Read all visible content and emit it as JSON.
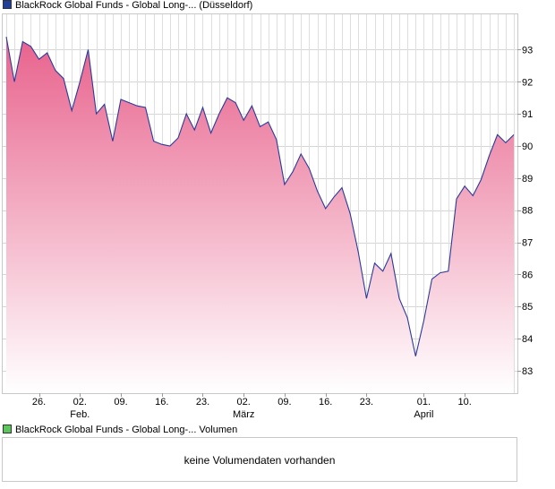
{
  "chart_data": [
    {
      "type": "area",
      "legend_label": "BlackRock Global Funds - Global Long-... (Düsseldorf)",
      "legend_color": "#1f3f9a",
      "fill_top_color": "#e8628c",
      "fill_bottom_color": "#ffffff",
      "line_color": "#2a3a9c",
      "ylim": [
        82.3,
        94.1
      ],
      "y_ticks": [
        83,
        84,
        85,
        86,
        87,
        88,
        89,
        90,
        91,
        92,
        93
      ],
      "x_ticks": [
        {
          "index": 4,
          "label": "26.",
          "sub": ""
        },
        {
          "index": 9,
          "label": "02.",
          "sub": "Feb."
        },
        {
          "index": 14,
          "label": "09.",
          "sub": ""
        },
        {
          "index": 19,
          "label": "16.",
          "sub": ""
        },
        {
          "index": 24,
          "label": "23.",
          "sub": ""
        },
        {
          "index": 29,
          "label": "02.",
          "sub": "März"
        },
        {
          "index": 34,
          "label": "09.",
          "sub": ""
        },
        {
          "index": 39,
          "label": "16.",
          "sub": ""
        },
        {
          "index": 44,
          "label": "23.",
          "sub": ""
        },
        {
          "index": 51,
          "label": "01.",
          "sub": "April"
        },
        {
          "index": 56,
          "label": "10.",
          "sub": ""
        }
      ],
      "values": [
        93.4,
        92.0,
        93.25,
        93.1,
        92.7,
        92.9,
        92.35,
        92.1,
        91.1,
        92.0,
        93.0,
        91.0,
        91.3,
        90.15,
        91.45,
        91.35,
        91.25,
        91.2,
        90.15,
        90.05,
        90.0,
        90.25,
        91.0,
        90.5,
        91.2,
        90.4,
        91.0,
        91.5,
        91.35,
        90.8,
        91.25,
        90.6,
        90.75,
        90.2,
        88.8,
        89.2,
        89.75,
        89.3,
        88.6,
        88.05,
        88.4,
        88.7,
        87.9,
        86.7,
        85.25,
        86.35,
        86.1,
        86.65,
        85.25,
        84.65,
        83.45,
        84.55,
        85.85,
        86.05,
        86.1,
        88.35,
        88.75,
        88.45,
        88.95,
        89.7,
        90.35,
        90.1,
        90.35
      ]
    },
    {
      "type": "bar",
      "legend_label": "BlackRock Global Funds - Global Long-... Volumen",
      "legend_color": "#5cc65c",
      "message": "keine Volumendaten vorhanden",
      "values": []
    }
  ]
}
